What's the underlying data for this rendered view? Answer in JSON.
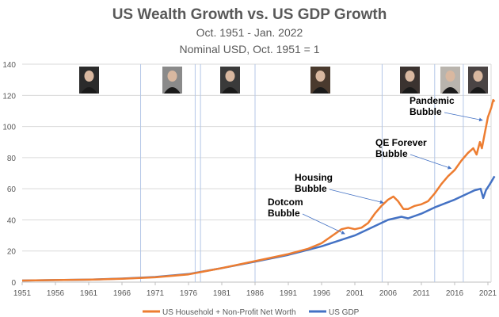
{
  "chart_data": {
    "type": "line",
    "title": "US Wealth Growth vs. US GDP Growth",
    "subtitle": [
      "Oct. 1951 - Jan. 2022",
      "Nominal USD, Oct. 1951 = 1"
    ],
    "xlabel": "",
    "ylabel": "",
    "xlim": [
      1951,
      2022
    ],
    "ylim": [
      0,
      140
    ],
    "x_ticks": [
      1951,
      1956,
      1961,
      1966,
      1971,
      1976,
      1981,
      1986,
      1991,
      1996,
      2001,
      2006,
      2011,
      2016,
      2021
    ],
    "y_ticks": [
      0,
      20,
      40,
      60,
      80,
      100,
      120,
      140
    ],
    "grid": true,
    "legend_position": "bottom",
    "fed_chair_change_lines": [
      1968.8,
      1977.0,
      1977.8,
      1986.0,
      2005.1,
      2013.0,
      2017.3
    ],
    "colors": {
      "wealth": "#ED7D31",
      "gdp": "#4472C4",
      "vline": "#B4C7E7",
      "grid": "#D9D9D9"
    },
    "series": [
      {
        "name": "US Household + Non-Profit Net Worth",
        "color": "#ED7D31",
        "x": [
          1951,
          1956,
          1961,
          1966,
          1971,
          1976,
          1981,
          1986,
          1991,
          1994,
          1996,
          1998,
          1999,
          2000,
          2001,
          2002,
          2003,
          2004,
          2005,
          2006,
          2006.8,
          2007.5,
          2008.3,
          2009,
          2010,
          2011,
          2012,
          2013,
          2014,
          2015,
          2016,
          2017,
          2018,
          2018.8,
          2019.3,
          2019.8,
          2020.1,
          2020.5,
          2021,
          2021.5,
          2021.8,
          2022
        ],
        "y": [
          1,
          1.3,
          1.6,
          2.2,
          3.1,
          5,
          9,
          13.5,
          18,
          21.5,
          25,
          31,
          34,
          35,
          34,
          35,
          38,
          44,
          49,
          53,
          55,
          52,
          47,
          47,
          49,
          50,
          52,
          57,
          63,
          68,
          72,
          78,
          83,
          86,
          82,
          90,
          86,
          95,
          106,
          112,
          117,
          116
        ]
      },
      {
        "name": "US GDP",
        "color": "#4472C4",
        "x": [
          1951,
          1956,
          1961,
          1966,
          1971,
          1976,
          1981,
          1986,
          1991,
          1996,
          2001,
          2006,
          2008,
          2009,
          2011,
          2013,
          2016,
          2019,
          2019.9,
          2020.3,
          2020.7,
          2021.3,
          2022
        ],
        "y": [
          1,
          1.3,
          1.6,
          2.3,
          3.3,
          5.2,
          9,
          13.2,
          17.5,
          23,
          30,
          40,
          42,
          41,
          44,
          48,
          53,
          59,
          60,
          54,
          59,
          63,
          68
        ]
      }
    ],
    "annotations": [
      {
        "text": [
          "Dotcom",
          "Bubble"
        ],
        "arrow_to": [
          1999.5,
          31
        ]
      },
      {
        "text": [
          "Housing",
          "Bubble"
        ],
        "arrow_to": [
          2005.3,
          51
        ]
      },
      {
        "text": [
          "QE Forever",
          "Bubble"
        ],
        "arrow_to": [
          2015.5,
          73
        ]
      },
      {
        "text": [
          "Pandemic",
          "Bubble"
        ],
        "arrow_to": [
          2020.2,
          104
        ]
      }
    ]
  }
}
